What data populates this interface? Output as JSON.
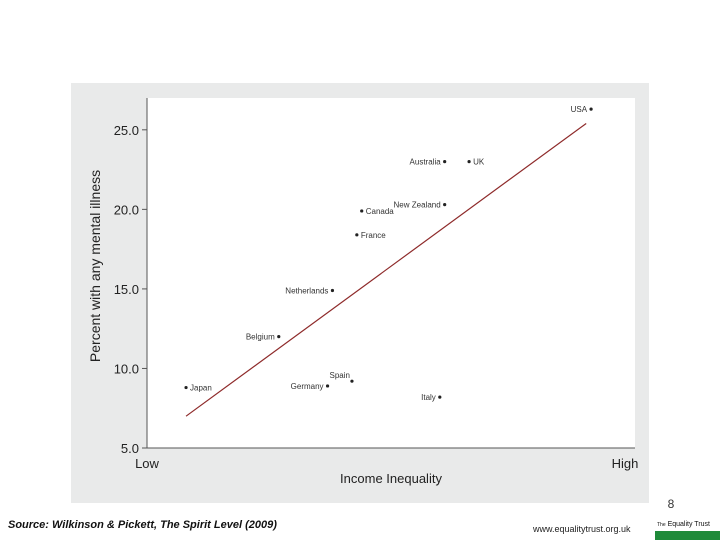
{
  "chart_data": {
    "type": "scatter",
    "title": "",
    "xlabel": "Income Inequality",
    "ylabel": "Percent with any mental illness",
    "x_tick_labels": {
      "low": "Low",
      "high": "High"
    },
    "xlim": [
      0,
      1
    ],
    "ylim": [
      5.0,
      27.0
    ],
    "y_ticks": [
      "5.0",
      "10.0",
      "15.0",
      "20.0",
      "25.0"
    ],
    "points": [
      {
        "label": "USA",
        "x": 0.91,
        "y": 26.3,
        "label_side": "left"
      },
      {
        "label": "Australia",
        "x": 0.61,
        "y": 23.0,
        "label_side": "left"
      },
      {
        "label": "UK",
        "x": 0.66,
        "y": 23.0,
        "label_side": "right"
      },
      {
        "label": "New Zealand",
        "x": 0.61,
        "y": 20.3,
        "label_side": "left"
      },
      {
        "label": "Canada",
        "x": 0.44,
        "y": 19.9,
        "label_side": "right"
      },
      {
        "label": "France",
        "x": 0.43,
        "y": 18.4,
        "label_side": "right"
      },
      {
        "label": "Netherlands",
        "x": 0.38,
        "y": 14.9,
        "label_side": "left"
      },
      {
        "label": "Belgium",
        "x": 0.27,
        "y": 12.0,
        "label_side": "left"
      },
      {
        "label": "Spain",
        "x": 0.42,
        "y": 9.2,
        "label_side": "above-left"
      },
      {
        "label": "Germany",
        "x": 0.37,
        "y": 8.9,
        "label_side": "left"
      },
      {
        "label": "Japan",
        "x": 0.08,
        "y": 8.8,
        "label_side": "right"
      },
      {
        "label": "Italy",
        "x": 0.6,
        "y": 8.2,
        "label_side": "left"
      }
    ],
    "trend_line": {
      "x": [
        0.08,
        0.9
      ],
      "y": [
        7.0,
        25.4
      ]
    },
    "colors": {
      "plot_bg": "#ffffff",
      "frame_bg": "#e9eaea",
      "trend": "#8e2a2a",
      "point": "#222222"
    }
  },
  "footer": {
    "slide_number": "8",
    "source": "Source: Wilkinson & Pickett, The Spirit Level (2009)",
    "website": "www.equalitytrust.org.uk",
    "logo_prefix": "The",
    "logo_text": "Equality Trust"
  }
}
